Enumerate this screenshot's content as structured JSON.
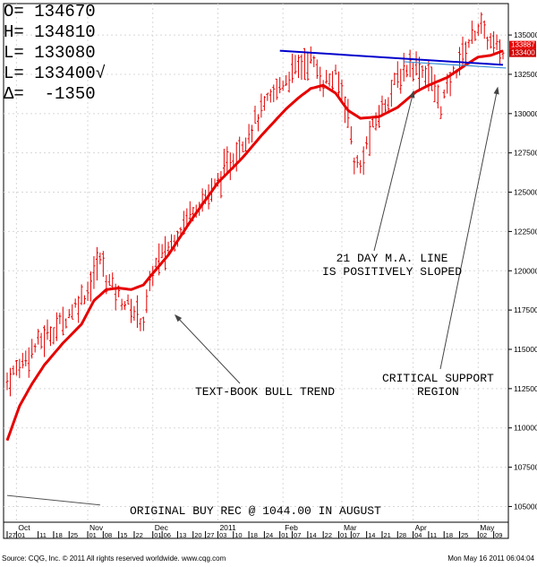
{
  "stats": {
    "open_label": "O=",
    "open": "134670",
    "high_label": "H=",
    "high": "134810",
    "low_label": "L=",
    "low": "133080",
    "last_label": "L=",
    "last": "133400√",
    "change_label": "Δ=",
    "change": "-1350"
  },
  "annotations": {
    "ma_line": "21 DAY M.A. LINE\nIS POSITIVELY SLOPED",
    "bull_trend": "TEXT-BOOK BULL TREND",
    "support": "CRITICAL SUPPORT\nREGION",
    "buy_rec": "ORIGINAL BUY REC @ 1044.00 IN AUGUST"
  },
  "footer": {
    "source": "Source: CQG, Inc. © 2011 All rights reserved worldwide. www.cqg.com",
    "timestamp": "Mon May 16 2011 06:04:04"
  },
  "colors": {
    "bars": "#e60000",
    "ma": "#e60000",
    "trendline": "#0000cc",
    "support_line": "#3a8fd6",
    "text": "#000000"
  },
  "chart_data": {
    "type": "ohlc_bar",
    "y_axis": {
      "ticks": [
        105000,
        107500,
        110000,
        112500,
        115000,
        117500,
        120000,
        122500,
        125000,
        127500,
        130000,
        132500,
        135000
      ],
      "tick_labels": [
        "105000",
        "107500",
        "110000",
        "112500",
        "115000",
        "117500",
        "120000",
        "122500",
        "125000",
        "127500",
        "130000",
        "132500",
        "135000"
      ],
      "ylim": [
        104000,
        137000
      ],
      "last_price_labels": [
        "133887",
        "133400"
      ]
    },
    "x_axis": {
      "months": [
        {
          "label": "Oct",
          "index": 3
        },
        {
          "label": "Nov",
          "index": 26
        },
        {
          "label": "Dec",
          "index": 47
        },
        {
          "label": "2011",
          "index": 68
        },
        {
          "label": "Feb",
          "index": 89
        },
        {
          "label": "Mar",
          "index": 108
        },
        {
          "label": "Apr",
          "index": 131
        },
        {
          "label": "May",
          "index": 152
        }
      ],
      "day_ticks": [
        {
          "label": "27",
          "index": 0
        },
        {
          "label": "01",
          "index": 3
        },
        {
          "label": "11",
          "index": 10
        },
        {
          "label": "18",
          "index": 15
        },
        {
          "label": "25",
          "index": 20
        },
        {
          "label": "01",
          "index": 26
        },
        {
          "label": "08",
          "index": 31
        },
        {
          "label": "15",
          "index": 36
        },
        {
          "label": "22",
          "index": 41
        },
        {
          "label": "01",
          "index": 47
        },
        {
          "label": "06",
          "index": 50
        },
        {
          "label": "13",
          "index": 55
        },
        {
          "label": "20",
          "index": 60
        },
        {
          "label": "27",
          "index": 64
        },
        {
          "label": "03",
          "index": 68
        },
        {
          "label": "10",
          "index": 73
        },
        {
          "label": "18",
          "index": 78
        },
        {
          "label": "24",
          "index": 83
        },
        {
          "label": "01",
          "index": 88
        },
        {
          "label": "07",
          "index": 92
        },
        {
          "label": "14",
          "index": 97
        },
        {
          "label": "22",
          "index": 102
        },
        {
          "label": "01",
          "index": 107
        },
        {
          "label": "07",
          "index": 111
        },
        {
          "label": "14",
          "index": 116
        },
        {
          "label": "21",
          "index": 121
        },
        {
          "label": "28",
          "index": 126
        },
        {
          "label": "04",
          "index": 131
        },
        {
          "label": "11",
          "index": 136
        },
        {
          "label": "18",
          "index": 141
        },
        {
          "label": "25",
          "index": 146
        },
        {
          "label": "02",
          "index": 152
        },
        {
          "label": "09",
          "index": 157
        }
      ],
      "count": 161
    },
    "ohlc_keypoints": [
      [
        0,
        113000
      ],
      [
        4,
        114000
      ],
      [
        10,
        115400
      ],
      [
        18,
        116800
      ],
      [
        26,
        118800
      ],
      [
        30,
        120800
      ],
      [
        32,
        119600
      ],
      [
        36,
        118400
      ],
      [
        40,
        117600
      ],
      [
        44,
        116800
      ],
      [
        47,
        120000
      ],
      [
        52,
        121500
      ],
      [
        60,
        124000
      ],
      [
        66,
        125000
      ],
      [
        74,
        127600
      ],
      [
        80,
        129500
      ],
      [
        88,
        131800
      ],
      [
        94,
        133000
      ],
      [
        98,
        133500
      ],
      [
        102,
        132000
      ],
      [
        106,
        132300
      ],
      [
        108,
        131500
      ],
      [
        110,
        130000
      ],
      [
        112,
        127000
      ],
      [
        114,
        126500
      ],
      [
        116,
        128000
      ],
      [
        120,
        130000
      ],
      [
        126,
        132200
      ],
      [
        130,
        133200
      ],
      [
        136,
        132500
      ],
      [
        140,
        130500
      ],
      [
        144,
        132500
      ],
      [
        148,
        134200
      ],
      [
        152,
        135600
      ],
      [
        156,
        134500
      ],
      [
        160,
        133800
      ]
    ],
    "ma_keypoints": [
      [
        0,
        109200
      ],
      [
        4,
        111400
      ],
      [
        8,
        112800
      ],
      [
        12,
        114000
      ],
      [
        18,
        115400
      ],
      [
        24,
        116600
      ],
      [
        28,
        118100
      ],
      [
        32,
        118800
      ],
      [
        36,
        118900
      ],
      [
        40,
        118800
      ],
      [
        44,
        119100
      ],
      [
        46,
        119600
      ],
      [
        52,
        121000
      ],
      [
        60,
        123400
      ],
      [
        68,
        125600
      ],
      [
        76,
        127200
      ],
      [
        82,
        128600
      ],
      [
        90,
        130300
      ],
      [
        94,
        131000
      ],
      [
        98,
        131600
      ],
      [
        102,
        131800
      ],
      [
        106,
        131300
      ],
      [
        110,
        130200
      ],
      [
        114,
        129700
      ],
      [
        120,
        129800
      ],
      [
        126,
        130400
      ],
      [
        132,
        131400
      ],
      [
        136,
        131800
      ],
      [
        142,
        132300
      ],
      [
        148,
        133100
      ],
      [
        152,
        133600
      ],
      [
        156,
        133700
      ],
      [
        160,
        134000
      ]
    ],
    "trend_line": {
      "from": [
        88,
        134000
      ],
      "to": [
        160,
        133100
      ]
    },
    "support_line": {
      "from": [
        128,
        133300
      ],
      "to": [
        161,
        132900
      ]
    },
    "buy_rec_line": {
      "from": [
        0,
        105700
      ],
      "to": [
        30,
        105100
      ]
    }
  }
}
